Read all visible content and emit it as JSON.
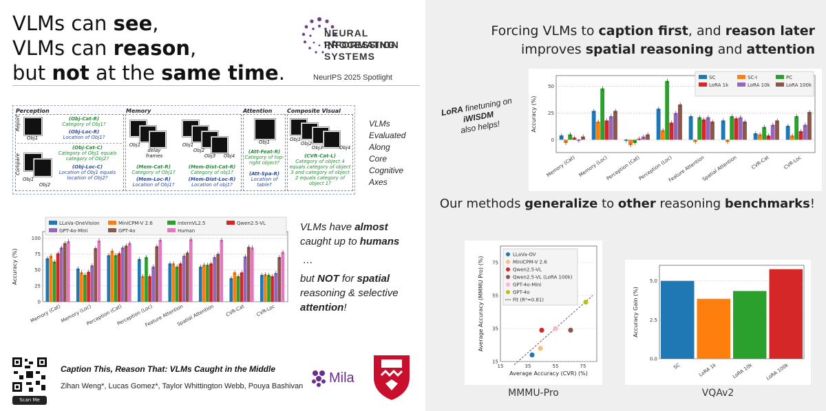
{
  "title": {
    "line1_a": "VLMs can ",
    "line1_b": "see",
    "line1_c": ",",
    "line2_a": "VLMs can ",
    "line2_b": "reason",
    "line2_c": ",",
    "line3_a": "but ",
    "line3_b": "not",
    "line3_c": " at the ",
    "line3_d": "same time",
    "line3_e": "."
  },
  "neurips": {
    "name1": "NEURAL INFORMATION",
    "name2": "PROCESSING SYSTEMS",
    "spotlight": "NeurIPS 2025 Spotlight"
  },
  "axes_panel": {
    "perception": "Perception",
    "memory": "Memory",
    "attention": "Attention",
    "cvr": "Composite Visual Reasoning",
    "report": "Report",
    "compare": "Compare",
    "obj1": "Obj1",
    "obj2": "Obj2",
    "obj3": "Obj3",
    "obj4": "Obj4",
    "delay": "delay frames",
    "obj_cat_r": "(Obj-Cat-R)",
    "obj_cat_r_d": "Category of Obj1?",
    "obj_loc_r": "(Obj-Loc-R)",
    "obj_loc_r_d": "Location of Obj1?",
    "obj_cat_c": "(Obj-Cat-C)",
    "obj_cat_c_d": "Category of Obj1 equals category of Obj2?",
    "obj_loc_c": "(Obj-Loc-C)",
    "obj_loc_c_d": "Location of Obj1 equals location of Obj2?",
    "mem_cat_r": "(Mem-Cat-R)",
    "mem_cat_r_d": "Category of Obj1?",
    "mem_loc_r": "(Mem-Loc-R)",
    "mem_loc_r_d": "Location of Obj1?",
    "mem_dist_cat": "(Mem-Dist-Cat-R)",
    "mem_dist_cat_d": "Category of obj1?",
    "mem_dist_loc": "(Mem-Dist-Loc-R)",
    "mem_dist_loc_d": "Location of obj1?",
    "att_feat": "(Att-Feat-R)",
    "att_feat_d": "Category of top-right object?",
    "att_spa": "(Att-Spa-R)",
    "att_spa_d": "Location of table?",
    "cvr_cat": "(CVR-Cat-L)",
    "cvr_cat_d": "Category of object 4 equals category of object 3 and category of object 2 equals category of object 1?"
  },
  "axes_note": [
    "VLMs",
    "Evaluated",
    "Along",
    "Core",
    "Cognitive",
    "Axes"
  ],
  "left_note": {
    "a1": "VLMs have ",
    "a2": "almost",
    "a3": "caught up to ",
    "a4": "humans",
    "dots": "…",
    "b1": "but ",
    "b2": "NOT",
    "b3": " for ",
    "b4": "spatial",
    "b5": "reasoning & selective",
    "b6": "attention",
    "b7": "!"
  },
  "paper": {
    "title": "Caption This, Reason That: VLMs Caught in the Middle",
    "authors": "Zihan Weng*, Lucas Gomez*, Taylor Whittington Webb, Pouya Bashivan",
    "scan": "Scan Me",
    "mila": "Mila"
  },
  "right_heading": {
    "l1_a": "Forcing VLMs to ",
    "l1_b": "caption first",
    "l1_c": ", and ",
    "l1_d": "reason later",
    "l2_a": "improves ",
    "l2_b": "spatial reasoning",
    "l2_c": " and ",
    "l2_d": "attention"
  },
  "lora_note": {
    "a": "LoRA",
    "b": " finetuning on",
    "c": "iWISDM",
    "d": "also helps!"
  },
  "general_heading": {
    "a": "Our methods ",
    "b": "generalize",
    "c": " to ",
    "d": "other",
    "e": " reasoning ",
    "f": "benchmarks",
    "g": "!"
  },
  "chart_data": [
    {
      "type": "bar",
      "ylabel": "Accuracy (%)",
      "ylim": [
        0,
        110
      ],
      "yticks": [
        "0",
        "25",
        "50",
        "75",
        "100"
      ],
      "categories": [
        "Memory (Cat)",
        "Memory (Loc)",
        "Perception (Cat)",
        "Perception (Loc)",
        "Feature Attention",
        "Spatial Attention",
        "CVR-Cat",
        "CVR-Loc"
      ],
      "series": [
        {
          "name": "LLaVa-OneVision",
          "color": "#1f77b4",
          "values": [
            68,
            52,
            73,
            67,
            60,
            55,
            37,
            42
          ]
        },
        {
          "name": "MiniCPM-V 2.6",
          "color": "#ff7f0e",
          "values": [
            72,
            46,
            80,
            40,
            60,
            58,
            46,
            43
          ]
        },
        {
          "name": "internVL2.5",
          "color": "#2ca02c",
          "values": [
            63,
            42,
            73,
            70,
            55,
            58,
            40,
            42
          ]
        },
        {
          "name": "Qwen2.5-VL",
          "color": "#d62728",
          "values": [
            76,
            47,
            76,
            40,
            60,
            60,
            46,
            40
          ]
        },
        {
          "name": "GPT-4o-Mini",
          "color": "#9467bd",
          "values": [
            85,
            57,
            85,
            55,
            72,
            70,
            71,
            45
          ]
        },
        {
          "name": "GPT-4o",
          "color": "#8c564b",
          "values": [
            92,
            84,
            88,
            87,
            77,
            75,
            86,
            70
          ]
        },
        {
          "name": "Human",
          "color": "#e377c2",
          "values": [
            95,
            96,
            92,
            97,
            98,
            97,
            85,
            78
          ]
        }
      ]
    },
    {
      "type": "bar",
      "ylabel": "Accuracy (%)",
      "ylim": [
        -12,
        60
      ],
      "yticks": [
        "0",
        "25",
        "50"
      ],
      "categories": [
        "Memory (Cat)",
        "Memory (Loc)",
        "Perception (Cat)",
        "Perception (Loc)",
        "Feature Attention",
        "Spatial Attention",
        "CVR-Cat",
        "CVR-Loc"
      ],
      "series": [
        {
          "name": "SC",
          "color": "#1f77b4",
          "values": [
            4,
            27,
            -1,
            29,
            22,
            18,
            6,
            13
          ]
        },
        {
          "name": "SC-I",
          "color": "#ff7f0e",
          "values": [
            -3,
            17,
            -5,
            9,
            -2,
            -2,
            5,
            4
          ]
        },
        {
          "name": "PC",
          "color": "#2ca02c",
          "values": [
            5,
            48,
            -3,
            55,
            21,
            22,
            12,
            22
          ]
        },
        {
          "name": "LoRA 1k",
          "color": "#d62728",
          "values": [
            2,
            18,
            1,
            16,
            19,
            20,
            4,
            8
          ]
        },
        {
          "name": "LoRA 10k",
          "color": "#9467bd",
          "values": [
            -1,
            22,
            3,
            25,
            21,
            21,
            14,
            14
          ]
        },
        {
          "name": "LoRA 100k",
          "color": "#8c564b",
          "values": [
            3,
            27,
            5,
            33,
            17,
            17,
            18,
            26
          ]
        }
      ]
    },
    {
      "type": "scatter",
      "caption": "MMMU-Pro",
      "xlabel": "Average Accuracy (CVR) (%)",
      "ylabel": "Average Accuracy (MMMU Pro) (%)",
      "xlim": [
        15,
        85
      ],
      "ylim": [
        15,
        85
      ],
      "xticks": [
        "15",
        "35",
        "55",
        "75"
      ],
      "yticks": [
        "15",
        "35",
        "55",
        "75"
      ],
      "points": [
        {
          "name": "LLaVa-OV",
          "color": "#1f77b4",
          "x": 38,
          "y": 19
        },
        {
          "name": "MiniCPM-V 2.6",
          "color": "#ffbb78",
          "x": 44,
          "y": 23
        },
        {
          "name": "Qwen2.5-VL",
          "color": "#d62728",
          "x": 45,
          "y": 34
        },
        {
          "name": "Qwen2.5-VL (LoRA 100k)",
          "color": "#8c564b",
          "x": 66,
          "y": 34
        },
        {
          "name": "GPT-4o-Mini",
          "color": "#f7b6d2",
          "x": 55,
          "y": 35
        },
        {
          "name": "GPT-4o",
          "color": "#bcbd22",
          "x": 77,
          "y": 51
        }
      ],
      "fit_label": "Fit (R²=0.81)"
    },
    {
      "type": "bar",
      "caption": "VQAv2",
      "ylabel": "Accuracy Gain (%)",
      "ylim": [
        0,
        6
      ],
      "yticks": [
        "0.0",
        "2.5",
        "5.0"
      ],
      "categories": [
        "SC",
        "LoRA 1k",
        "LoRA 10k",
        "LoRA 100k"
      ],
      "values": [
        5.0,
        3.85,
        4.35,
        5.75
      ],
      "colors": [
        "#1f77b4",
        "#ff7f0e",
        "#2ca02c",
        "#d62728"
      ]
    }
  ]
}
